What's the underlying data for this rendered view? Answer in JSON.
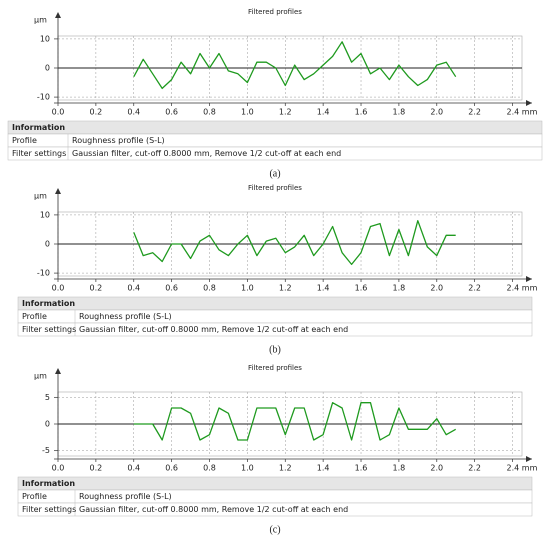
{
  "chart_data": [
    {
      "type": "line",
      "title": "Filtered profiles",
      "y_label": "µm",
      "color": "#1f9a1f",
      "grid": true,
      "xlim": [
        0,
        2.45
      ],
      "ylim": [
        -11,
        11
      ],
      "xticks": [
        {
          "value": 0,
          "label": "0.0"
        },
        0.2,
        0.4,
        0.6,
        0.8,
        {
          "value": 1,
          "label": "1.0"
        },
        1.2,
        1.4,
        1.6,
        1.8,
        {
          "value": 2,
          "label": "2.0"
        },
        2.2,
        {
          "value": 2.4,
          "label": "2.4 mm"
        }
      ],
      "yticks": [
        10,
        0,
        -10
      ],
      "x": [
        0.4,
        0.45,
        0.5,
        0.55,
        0.6,
        0.65,
        0.7,
        0.75,
        0.8,
        0.85,
        0.9,
        0.95,
        1.0,
        1.05,
        1.1,
        1.15,
        1.2,
        1.25,
        1.3,
        1.35,
        1.4,
        1.45,
        1.5,
        1.55,
        1.6,
        1.65,
        1.7,
        1.75,
        1.8,
        1.85,
        1.9,
        1.95,
        2.0,
        2.05,
        2.1
      ],
      "values": [
        -3,
        3,
        -2,
        -7,
        -4,
        2,
        -2,
        5,
        0,
        5,
        -1,
        -2,
        -5,
        2,
        2,
        0,
        -6,
        1,
        -4,
        -2,
        1,
        4,
        9,
        2,
        5,
        -2,
        0,
        -4,
        1,
        -3,
        -6,
        -4,
        1,
        2,
        -3
      ]
    },
    {
      "type": "line",
      "title": "Filtered profiles",
      "y_label": "µm",
      "color": "#1f9a1f",
      "grid": true,
      "xlim": [
        0,
        2.45
      ],
      "ylim": [
        -11,
        11
      ],
      "xticks": [
        {
          "value": 0,
          "label": "0.0"
        },
        0.2,
        0.4,
        0.6,
        0.8,
        {
          "value": 1,
          "label": "1.0"
        },
        1.2,
        1.4,
        1.6,
        1.8,
        {
          "value": 2,
          "label": "2.0"
        },
        2.2,
        {
          "value": 2.4,
          "label": "2.4 mm"
        }
      ],
      "yticks": [
        10,
        0,
        -10
      ],
      "x": [
        0.4,
        0.45,
        0.5,
        0.55,
        0.6,
        0.65,
        0.7,
        0.75,
        0.8,
        0.85,
        0.9,
        0.95,
        1.0,
        1.05,
        1.1,
        1.15,
        1.2,
        1.25,
        1.3,
        1.35,
        1.4,
        1.45,
        1.5,
        1.55,
        1.6,
        1.65,
        1.7,
        1.75,
        1.8,
        1.85,
        1.9,
        1.95,
        2.0,
        2.05,
        2.1
      ],
      "values": [
        4,
        -4,
        -3,
        -6,
        0,
        0,
        -5,
        1,
        3,
        -2,
        -4,
        0,
        3,
        -4,
        1,
        2,
        -3,
        -1,
        3,
        -4,
        0,
        6,
        -3,
        -7,
        -3,
        6,
        7,
        -4,
        5,
        -4,
        8,
        -1,
        -4,
        3,
        3
      ]
    },
    {
      "type": "line",
      "title": "Filtered profiles",
      "y_label": "µm",
      "color": "#1f9a1f",
      "grid": true,
      "xlim": [
        0,
        2.45
      ],
      "ylim": [
        -6,
        6
      ],
      "xticks": [
        {
          "value": 0,
          "label": "0.0"
        },
        0.2,
        0.4,
        0.6,
        0.8,
        {
          "value": 1,
          "label": "1.0"
        },
        1.2,
        1.4,
        1.6,
        1.8,
        {
          "value": 2,
          "label": "2.0"
        },
        2.2,
        {
          "value": 2.4,
          "label": "2.4 mm"
        }
      ],
      "yticks": [
        5,
        0,
        -5
      ],
      "x": [
        0.4,
        0.45,
        0.5,
        0.55,
        0.6,
        0.65,
        0.7,
        0.75,
        0.8,
        0.85,
        0.9,
        0.95,
        1.0,
        1.05,
        1.1,
        1.15,
        1.2,
        1.25,
        1.3,
        1.35,
        1.4,
        1.45,
        1.5,
        1.55,
        1.6,
        1.65,
        1.7,
        1.75,
        1.8,
        1.85,
        1.9,
        1.95,
        2.0,
        2.05,
        2.1
      ],
      "values": [
        0,
        0,
        0,
        -3,
        3,
        3,
        2,
        -3,
        -2,
        3,
        2,
        -3,
        -3,
        3,
        3,
        3,
        -2,
        3,
        3,
        -3,
        -2,
        4,
        3,
        -3,
        4,
        4,
        -3,
        -2,
        3,
        -1,
        -1,
        -1,
        1,
        -2,
        -1
      ]
    }
  ],
  "panels": [
    {
      "table": {
        "header": "Information",
        "rows": [
          [
            "Profile",
            "Roughness profile (S-L)"
          ],
          [
            "Filter settings",
            "Gaussian filter, cut-off 0.8000 mm, Remove 1/2 cut-off at each end"
          ]
        ]
      },
      "caption": "(a)"
    },
    {
      "table": {
        "header": "Information",
        "rows": [
          [
            "Profile",
            "Roughness profile (S-L)"
          ],
          [
            "Filter settings",
            "Gaussian filter, cut-off 0.8000 mm, Remove 1/2 cut-off at each end"
          ]
        ]
      },
      "caption": "(b)"
    },
    {
      "table": {
        "header": "Information",
        "rows": [
          [
            "Profile",
            "Roughness profile (S-L)"
          ],
          [
            "Filter settings",
            "Gaussian filter, cut-off 0.8000 mm, Remove 1/2 cut-off at each end"
          ]
        ]
      },
      "caption": "(c)"
    }
  ]
}
